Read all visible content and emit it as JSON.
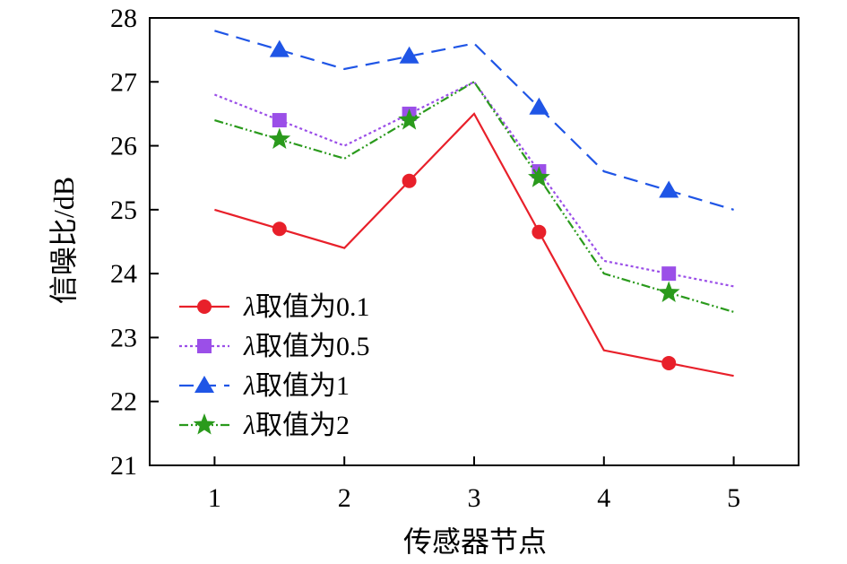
{
  "chart_data": {
    "type": "line",
    "title": "",
    "xlabel": "传感器节点",
    "ylabel": "信噪比/dB",
    "xlim": [
      0.5,
      5.5
    ],
    "ylim": [
      21,
      28
    ],
    "xticks": [
      1,
      2,
      3,
      4,
      5
    ],
    "yticks": [
      21,
      22,
      23,
      24,
      25,
      26,
      27,
      28
    ],
    "x": [
      1,
      2,
      3,
      4,
      5
    ],
    "marker_x": [
      1.5,
      2.5,
      3.5,
      4.5
    ],
    "legend_position": "lower-left",
    "series": [
      {
        "name": "λ取值为0.1",
        "prefix": "λ",
        "suffix": "取值为0.1",
        "color": "#e8202a",
        "dash": "",
        "marker": "circle",
        "values": [
          25.0,
          24.4,
          26.5,
          22.8,
          22.4
        ],
        "marker_values": [
          24.7,
          25.45,
          24.65,
          22.6
        ]
      },
      {
        "name": "λ取值为0.5",
        "prefix": "λ",
        "suffix": "取值为0.5",
        "color": "#9b4fe8",
        "dash": "3,3",
        "marker": "square",
        "values": [
          26.8,
          26.0,
          27.0,
          24.2,
          23.8
        ],
        "marker_values": [
          26.4,
          26.5,
          25.6,
          24.0
        ]
      },
      {
        "name": "λ取值为1",
        "prefix": "λ",
        "suffix": "取值为1",
        "color": "#1f55e6",
        "dash": "16,9",
        "marker": "triangle",
        "values": [
          27.8,
          27.2,
          27.6,
          25.6,
          25.0
        ],
        "marker_values": [
          27.5,
          27.4,
          26.6,
          25.3
        ]
      },
      {
        "name": "λ取值为2",
        "prefix": "λ",
        "suffix": "取值为2",
        "color": "#2a9a1c",
        "dash": "10,3,2,3,2,3",
        "marker": "star",
        "values": [
          26.4,
          25.8,
          27.0,
          24.0,
          23.4
        ],
        "marker_values": [
          26.1,
          26.4,
          25.5,
          23.7
        ]
      }
    ]
  }
}
